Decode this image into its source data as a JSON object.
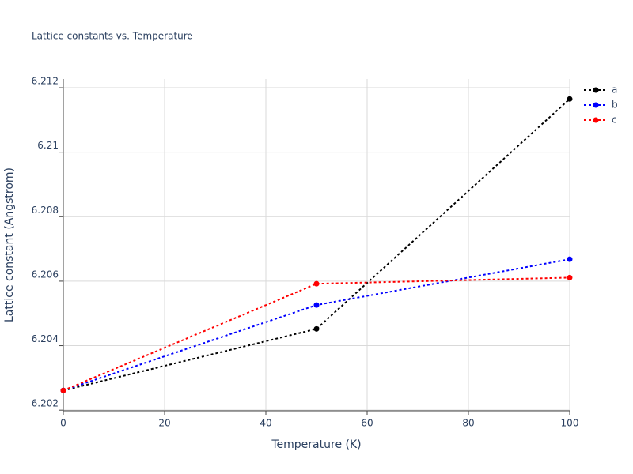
{
  "chart_data": {
    "type": "line",
    "title": "Lattice constants vs. Temperature",
    "x_label": "Temperature (K)",
    "y_label": "Lattice constant (Angstrom)",
    "x": [
      0,
      50,
      100
    ],
    "series": [
      {
        "name": "a",
        "color": "#000000",
        "values": [
          6.20261,
          6.20452,
          6.21165
        ]
      },
      {
        "name": "b",
        "color": "#0000ff",
        "values": [
          6.20261,
          6.20526,
          6.20668
        ]
      },
      {
        "name": "c",
        "color": "#ff0000",
        "values": [
          6.20261,
          6.20592,
          6.20611
        ]
      }
    ],
    "xlim": [
      0,
      100
    ],
    "xticks": [
      0,
      20,
      40,
      60,
      80,
      100
    ],
    "ylim": [
      6.20198,
      6.21227
    ],
    "yticks": [
      6.202,
      6.204,
      6.206,
      6.208,
      6.21,
      6.212
    ],
    "grid": true,
    "legend": "right",
    "line_style": "dotted"
  }
}
